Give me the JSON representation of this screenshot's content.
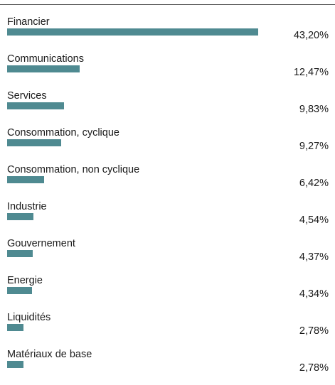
{
  "chart_data": {
    "type": "bar",
    "orientation": "horizontal",
    "categories": [
      "Financier",
      "Communications",
      "Services",
      "Consommation, cyclique",
      "Consommation, non cyclique",
      "Industrie",
      "Gouvernement",
      "Energie",
      "Liquidités",
      "Matériaux de base"
    ],
    "values": [
      43.2,
      12.47,
      9.83,
      9.27,
      6.42,
      4.54,
      4.37,
      4.34,
      2.78,
      2.78
    ],
    "value_labels": [
      "43,20%",
      "12,47%",
      "9,83%",
      "9,27%",
      "6,42%",
      "4,54%",
      "4,37%",
      "4,34%",
      "2,78%",
      "2,78%"
    ],
    "unit": "%",
    "xlim": [
      0,
      43.2
    ],
    "bar_color": "#4f8a91",
    "grid": false,
    "legend": "none"
  }
}
